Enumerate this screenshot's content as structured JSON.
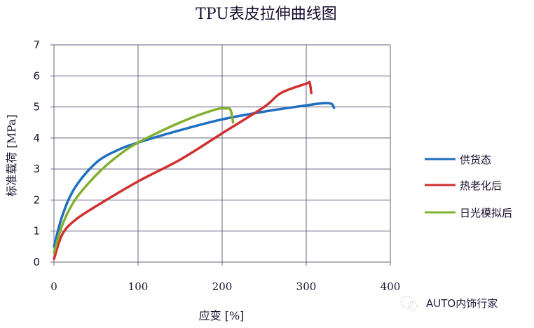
{
  "chart_data": {
    "type": "line",
    "title": "TPU表皮拉伸曲线图",
    "xlabel": "应变 [%]",
    "ylabel": "标准载荷 [MPa]",
    "xlim": [
      0,
      400
    ],
    "ylim": [
      0,
      7
    ],
    "xticks": [
      "0",
      "100",
      "200",
      "300",
      "400"
    ],
    "yticks": [
      "0",
      "1",
      "2",
      "3",
      "4",
      "5",
      "6",
      "7"
    ],
    "grid": true,
    "legend_position": "right",
    "series": [
      {
        "name": "供货态",
        "color": "#1f6fc0",
        "x": [
          0,
          10,
          25,
          50,
          75,
          100,
          150,
          200,
          250,
          300,
          320,
          330,
          333
        ],
        "y": [
          0.5,
          1.5,
          2.4,
          3.2,
          3.6,
          3.85,
          4.25,
          4.6,
          4.85,
          5.05,
          5.12,
          5.1,
          4.97
        ]
      },
      {
        "name": "热老化后",
        "color": "#d03030",
        "x": [
          0,
          10,
          25,
          50,
          100,
          150,
          200,
          250,
          270,
          300,
          304,
          306
        ],
        "y": [
          0.1,
          0.9,
          1.35,
          1.8,
          2.6,
          3.3,
          4.15,
          5.0,
          5.45,
          5.75,
          5.78,
          5.45
        ]
      },
      {
        "name": "日光模拟后",
        "color": "#82b030",
        "x": [
          0,
          10,
          25,
          50,
          75,
          100,
          150,
          190,
          205,
          210,
          213
        ],
        "y": [
          0.3,
          1.2,
          2.0,
          2.8,
          3.4,
          3.85,
          4.5,
          4.9,
          4.95,
          4.9,
          4.5
        ]
      }
    ]
  },
  "watermark": {
    "text": "AUTO内饰行家"
  }
}
